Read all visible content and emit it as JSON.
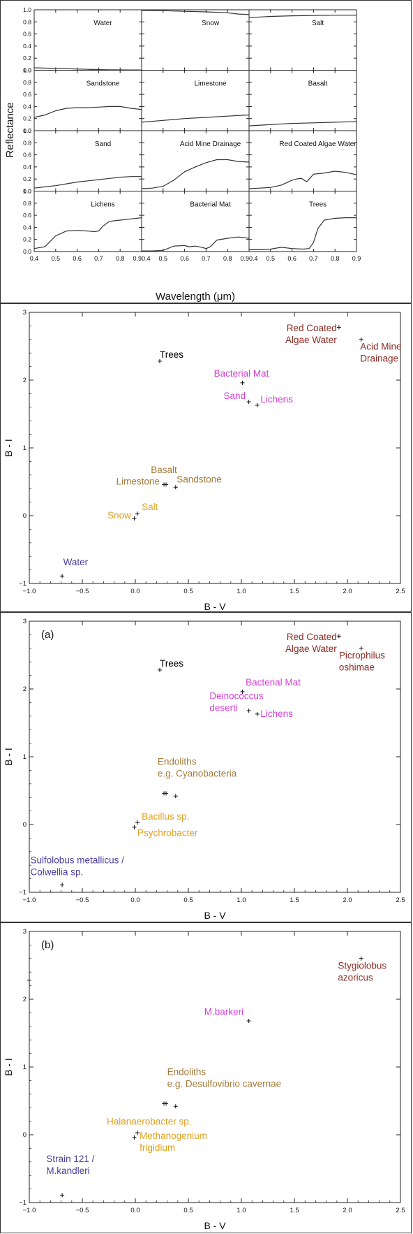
{
  "chart_data": [
    {
      "type": "line",
      "layout": "3x4 grid of small multiples",
      "xlabel": "Wavelength (μm)",
      "ylabel": "Reflectance",
      "xlim": [
        0.4,
        0.9
      ],
      "ylim": [
        0.0,
        1.0
      ],
      "x_ticks": [
        "0.4",
        "0.5",
        "0.6",
        "0.7",
        "0.8",
        "0.9"
      ],
      "y_ticks": [
        "0.0",
        "0.2",
        "0.4",
        "0.6",
        "0.8",
        "1.0"
      ],
      "line_color": "#333333",
      "panels": [
        {
          "name": "Water",
          "x": [
            0.4,
            0.45,
            0.5,
            0.55,
            0.6,
            0.65,
            0.7,
            0.75,
            0.8,
            0.85,
            0.9
          ],
          "y": [
            0.04,
            0.035,
            0.03,
            0.025,
            0.02,
            0.015,
            0.01,
            0.008,
            0.006,
            0.005,
            0.005
          ]
        },
        {
          "name": "Snow",
          "x": [
            0.4,
            0.5,
            0.6,
            0.7,
            0.8,
            0.85,
            0.9
          ],
          "y": [
            0.99,
            0.985,
            0.975,
            0.965,
            0.95,
            0.93,
            0.92
          ]
        },
        {
          "name": "Salt",
          "x": [
            0.4,
            0.5,
            0.6,
            0.7,
            0.8,
            0.9
          ],
          "y": [
            0.87,
            0.89,
            0.9,
            0.905,
            0.91,
            0.91
          ]
        },
        {
          "name": "Sandstone",
          "x": [
            0.4,
            0.45,
            0.5,
            0.55,
            0.6,
            0.65,
            0.7,
            0.75,
            0.8,
            0.85,
            0.9
          ],
          "y": [
            0.22,
            0.26,
            0.33,
            0.37,
            0.38,
            0.38,
            0.39,
            0.4,
            0.4,
            0.37,
            0.35
          ]
        },
        {
          "name": "Limestone",
          "x": [
            0.4,
            0.5,
            0.6,
            0.7,
            0.8,
            0.9
          ],
          "y": [
            0.14,
            0.17,
            0.2,
            0.22,
            0.24,
            0.26
          ]
        },
        {
          "name": "Basalt",
          "x": [
            0.4,
            0.5,
            0.6,
            0.7,
            0.8,
            0.9
          ],
          "y": [
            0.08,
            0.1,
            0.12,
            0.13,
            0.14,
            0.15
          ]
        },
        {
          "name": "Sand",
          "x": [
            0.4,
            0.45,
            0.5,
            0.55,
            0.6,
            0.65,
            0.7,
            0.75,
            0.8,
            0.85,
            0.9
          ],
          "y": [
            0.05,
            0.07,
            0.09,
            0.12,
            0.15,
            0.17,
            0.19,
            0.21,
            0.23,
            0.24,
            0.24
          ]
        },
        {
          "name": "Acid Mine Drainage",
          "x": [
            0.4,
            0.45,
            0.5,
            0.55,
            0.6,
            0.65,
            0.7,
            0.75,
            0.8,
            0.85,
            0.9
          ],
          "y": [
            0.04,
            0.05,
            0.08,
            0.18,
            0.32,
            0.4,
            0.47,
            0.52,
            0.52,
            0.49,
            0.48
          ]
        },
        {
          "name": "Red Coated Algae Water",
          "x": [
            0.4,
            0.45,
            0.5,
            0.55,
            0.6,
            0.62,
            0.64,
            0.65,
            0.66,
            0.67,
            0.68,
            0.7,
            0.75,
            0.8,
            0.85,
            0.9
          ],
          "y": [
            0.04,
            0.05,
            0.06,
            0.1,
            0.18,
            0.2,
            0.21,
            0.2,
            0.17,
            0.16,
            0.2,
            0.28,
            0.3,
            0.33,
            0.31,
            0.27
          ]
        },
        {
          "name": "Lichens",
          "x": [
            0.4,
            0.45,
            0.5,
            0.55,
            0.6,
            0.65,
            0.68,
            0.7,
            0.72,
            0.75,
            0.8,
            0.85,
            0.9
          ],
          "y": [
            0.05,
            0.08,
            0.26,
            0.34,
            0.35,
            0.34,
            0.33,
            0.34,
            0.42,
            0.5,
            0.52,
            0.54,
            0.56
          ]
        },
        {
          "name": "Bacterial Mat",
          "x": [
            0.4,
            0.45,
            0.5,
            0.55,
            0.6,
            0.62,
            0.65,
            0.68,
            0.7,
            0.72,
            0.75,
            0.8,
            0.85,
            0.9
          ],
          "y": [
            0.01,
            0.01,
            0.02,
            0.09,
            0.1,
            0.08,
            0.09,
            0.07,
            0.05,
            0.08,
            0.19,
            0.22,
            0.24,
            0.22
          ]
        },
        {
          "name": "Trees",
          "x": [
            0.4,
            0.45,
            0.5,
            0.55,
            0.6,
            0.65,
            0.68,
            0.7,
            0.72,
            0.75,
            0.8,
            0.85,
            0.9
          ],
          "y": [
            0.03,
            0.03,
            0.04,
            0.07,
            0.05,
            0.04,
            0.05,
            0.15,
            0.38,
            0.52,
            0.55,
            0.56,
            0.56
          ]
        }
      ]
    },
    {
      "type": "scatter",
      "xlabel": "B - V",
      "ylabel": "B - I",
      "xlim": [
        -1.0,
        2.5
      ],
      "ylim": [
        -1,
        3
      ],
      "x_ticks": [
        "−1.0",
        "−0.5",
        "0.0",
        "0.5",
        "1.0",
        "1.5",
        "2.0",
        "2.5"
      ],
      "y_ticks": [
        "−1",
        "0",
        "1",
        "2",
        "3"
      ],
      "points": [
        {
          "x": 1.92,
          "y": 2.78
        },
        {
          "x": 2.13,
          "y": 2.6
        },
        {
          "x": 0.23,
          "y": 2.28
        },
        {
          "x": 1.01,
          "y": 1.96
        },
        {
          "x": 1.07,
          "y": 1.68
        },
        {
          "x": 1.15,
          "y": 1.63
        },
        {
          "x": 0.27,
          "y": 0.46
        },
        {
          "x": 0.29,
          "y": 0.46
        },
        {
          "x": 0.38,
          "y": 0.42
        },
        {
          "x": 0.02,
          "y": 0.03
        },
        {
          "x": -0.01,
          "y": -0.04
        },
        {
          "x": -0.69,
          "y": -0.89
        }
      ],
      "labels": [
        {
          "lines": [
            "Red Coated",
            "Algae Water"
          ],
          "x": 1.9,
          "y": 2.72,
          "anchor": "end",
          "color": "#8b2c23"
        },
        {
          "lines": [
            "Acid Mine",
            "Drainage"
          ],
          "x": 2.12,
          "y": 2.45,
          "anchor": "start",
          "color": "#8b2c23"
        },
        {
          "lines": [
            "Trees"
          ],
          "x": 0.23,
          "y": 2.33,
          "anchor": "start",
          "color": "#000000"
        },
        {
          "lines": [
            "Bacterial Mat"
          ],
          "x": 1.0,
          "y": 2.05,
          "anchor": "middle",
          "color": "#d13fd1"
        },
        {
          "lines": [
            "Sand"
          ],
          "x": 1.04,
          "y": 1.72,
          "anchor": "end",
          "color": "#d13fd1"
        },
        {
          "lines": [
            "Lichens"
          ],
          "x": 1.18,
          "y": 1.67,
          "anchor": "start",
          "color": "#d13fd1"
        },
        {
          "lines": [
            "Basalt"
          ],
          "x": 0.27,
          "y": 0.63,
          "anchor": "middle",
          "color": "#a37a3a"
        },
        {
          "lines": [
            "Limestone"
          ],
          "x": 0.23,
          "y": 0.46,
          "anchor": "end",
          "color": "#a37a3a"
        },
        {
          "lines": [
            "Sandstone"
          ],
          "x": 0.39,
          "y": 0.49,
          "anchor": "start",
          "color": "#a37a3a"
        },
        {
          "lines": [
            "Salt"
          ],
          "x": 0.06,
          "y": 0.08,
          "anchor": "start",
          "color": "#e0a020"
        },
        {
          "lines": [
            "Snow"
          ],
          "x": -0.04,
          "y": -0.04,
          "anchor": "end",
          "color": "#e0a020"
        },
        {
          "lines": [
            "Water"
          ],
          "x": -0.68,
          "y": -0.73,
          "anchor": "start",
          "color": "#4a3d9c"
        }
      ]
    },
    {
      "type": "scatter",
      "panel_tag": "(a)",
      "xlabel": "B - V",
      "ylabel": "B - I",
      "xlim": [
        -1.0,
        2.5
      ],
      "ylim": [
        -1,
        3
      ],
      "x_ticks": [
        "−1.0",
        "−0.5",
        "0.0",
        "0.5",
        "1.0",
        "1.5",
        "2.0",
        "2.5"
      ],
      "y_ticks": [
        "−1",
        "0",
        "1",
        "2",
        "3"
      ],
      "points": [
        {
          "x": 1.92,
          "y": 2.78
        },
        {
          "x": 2.13,
          "y": 2.6
        },
        {
          "x": 0.23,
          "y": 2.28
        },
        {
          "x": 1.01,
          "y": 1.96
        },
        {
          "x": 1.07,
          "y": 1.68
        },
        {
          "x": 1.15,
          "y": 1.63
        },
        {
          "x": 0.27,
          "y": 0.46
        },
        {
          "x": 0.29,
          "y": 0.46
        },
        {
          "x": 0.38,
          "y": 0.42
        },
        {
          "x": 0.02,
          "y": 0.03
        },
        {
          "x": -0.01,
          "y": -0.04
        },
        {
          "x": -0.69,
          "y": -0.89
        }
      ],
      "labels": [
        {
          "lines": [
            "Red Coated",
            "Algae Water"
          ],
          "x": 1.9,
          "y": 2.72,
          "anchor": "end",
          "color": "#8b2c23"
        },
        {
          "lines": [
            "Picrophilus",
            "oshimae"
          ],
          "x": 1.92,
          "y": 2.45,
          "anchor": "start",
          "color": "#8b2c23"
        },
        {
          "lines": [
            "Trees"
          ],
          "x": 0.23,
          "y": 2.33,
          "anchor": "start",
          "color": "#000000"
        },
        {
          "lines": [
            "Bacterial Mat"
          ],
          "x": 1.04,
          "y": 2.05,
          "anchor": "start",
          "color": "#d13fd1"
        },
        {
          "lines": [
            "Deinococcus",
            "deserti"
          ],
          "x": 0.7,
          "y": 1.85,
          "anchor": "start",
          "color": "#d13fd1"
        },
        {
          "lines": [
            "Lichens"
          ],
          "x": 1.18,
          "y": 1.59,
          "anchor": "start",
          "color": "#d13fd1"
        },
        {
          "lines": [
            "Endoliths",
            "e.g. Cyanobacteria"
          ],
          "x": 0.21,
          "y": 0.88,
          "anchor": "start",
          "color": "#a37a3a"
        },
        {
          "lines": [
            "Bacillus sp."
          ],
          "x": 0.06,
          "y": 0.07,
          "anchor": "start",
          "color": "#e0a020"
        },
        {
          "lines": [
            "Psychrobacter"
          ],
          "x": 0.02,
          "y": -0.17,
          "anchor": "start",
          "color": "#e0a020"
        },
        {
          "lines": [
            "Sulfolobus metallicus /",
            "Colwellia sp."
          ],
          "x": -0.99,
          "y": -0.57,
          "anchor": "start",
          "color": "#4a3d9c"
        }
      ]
    },
    {
      "type": "scatter",
      "panel_tag": "(b)",
      "xlabel": "B - V",
      "ylabel": "B - I",
      "xlim": [
        -1.0,
        2.5
      ],
      "ylim": [
        -1,
        3
      ],
      "x_ticks": [
        "−1.0",
        "−0.5",
        "0.0",
        "0.5",
        "1.0",
        "1.5",
        "2.0",
        "2.5"
      ],
      "y_ticks": [
        "−1",
        "0",
        "1",
        "2",
        "3"
      ],
      "points": [
        {
          "x": -1.0,
          "y": 2.28
        },
        {
          "x": 2.13,
          "y": 2.6
        },
        {
          "x": 1.07,
          "y": 1.68
        },
        {
          "x": 0.27,
          "y": 0.46
        },
        {
          "x": 0.29,
          "y": 0.46
        },
        {
          "x": 0.38,
          "y": 0.42
        },
        {
          "x": 0.02,
          "y": 0.03
        },
        {
          "x": -0.01,
          "y": -0.04
        },
        {
          "x": -0.69,
          "y": -0.89
        }
      ],
      "labels": [
        {
          "lines": [
            "Stygiolobus",
            "azoricus"
          ],
          "x": 1.91,
          "y": 2.45,
          "anchor": "start",
          "color": "#8b2c23"
        },
        {
          "lines": [
            "M.barkeri"
          ],
          "x": 0.65,
          "y": 1.77,
          "anchor": "start",
          "color": "#d13fd1"
        },
        {
          "lines": [
            "Endoliths",
            "e.g. Desulfovibrio cavernae"
          ],
          "x": 0.3,
          "y": 0.88,
          "anchor": "start",
          "color": "#a37a3a"
        },
        {
          "lines": [
            "Halanaerobacter sp."
          ],
          "x": -0.27,
          "y": 0.15,
          "anchor": "start",
          "color": "#e0a020"
        },
        {
          "lines": [
            "Methanogenium",
            "frigidium"
          ],
          "x": 0.04,
          "y": -0.06,
          "anchor": "start",
          "color": "#e0a020"
        },
        {
          "lines": [
            "Strain 121 /",
            "M.kandleri"
          ],
          "x": -0.84,
          "y": -0.4,
          "anchor": "start",
          "color": "#4a3d9c"
        }
      ]
    }
  ]
}
